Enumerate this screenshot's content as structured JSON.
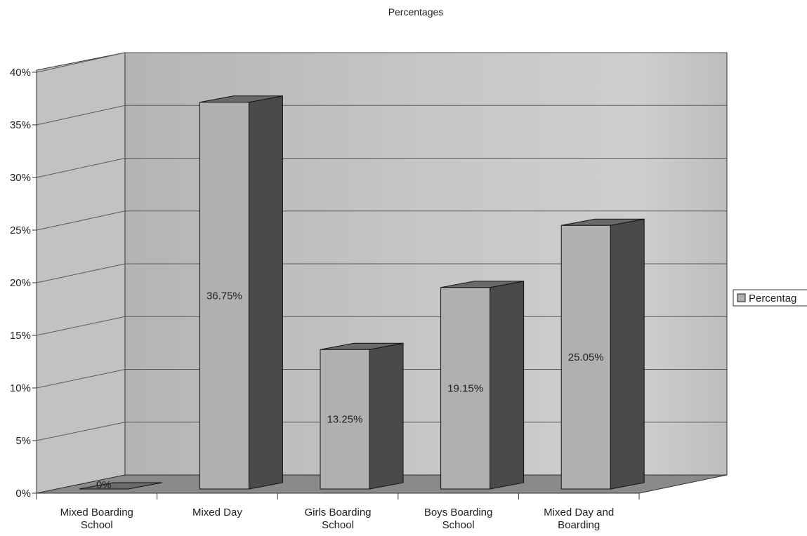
{
  "chart_data": {
    "type": "bar",
    "title": "Percentages",
    "xlabel": "",
    "ylabel": "",
    "categories": [
      [
        "Mixed Boarding",
        "School"
      ],
      [
        "Mixed Day"
      ],
      [
        "Girls Boarding",
        "School"
      ],
      [
        "Boys Boarding",
        "School"
      ],
      [
        "Mixed Day and",
        "Boarding"
      ]
    ],
    "series": [
      {
        "name": "Percentag",
        "values": [
          0,
          36.75,
          13.25,
          19.15,
          25.05
        ],
        "data_labels": [
          "0%",
          "36.75%",
          "13.25%",
          "19.15%",
          "25.05%"
        ]
      }
    ],
    "yticks": [
      "0%",
      "5%",
      "10%",
      "15%",
      "20%",
      "25%",
      "30%",
      "35%",
      "40%"
    ],
    "ylim": [
      0,
      40
    ],
    "grid": true,
    "legend": "right",
    "three_d": true
  },
  "colors": {
    "wall": "#bcbcbc",
    "side_wall": "#c4c4c4",
    "floor": "#8a8a8a",
    "bar_front": "#b0b0b0",
    "bar_side": "#4a4a4a",
    "bar_top": "#6a6a6a",
    "grid": "#5a5a5a"
  }
}
